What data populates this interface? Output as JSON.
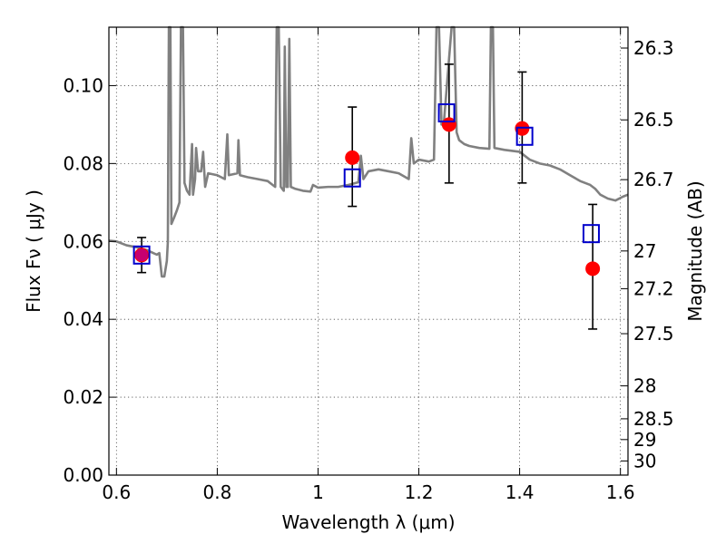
{
  "chart_data": {
    "type": "scatter",
    "xlabel": "Wavelength  λ (μm)",
    "ylabel": "Flux  Fν  ( μJy )",
    "y2label": "Magnitude (AB)",
    "xlim": [
      0.585,
      1.615
    ],
    "ylim": [
      0.0,
      0.115
    ],
    "grid": true,
    "x_ticks": [
      0.6,
      0.8,
      1.0,
      1.2,
      1.4,
      1.6
    ],
    "x_tick_labels": [
      "0.6",
      "0.8",
      "1",
      "1.2",
      "1.4",
      "1.6"
    ],
    "y_ticks": [
      0.0,
      0.02,
      0.04,
      0.06,
      0.08,
      0.1
    ],
    "y_tick_labels": [
      "0.00",
      "0.02",
      "0.04",
      "0.06",
      "0.08",
      "0.10"
    ],
    "y2_ticks": [
      {
        "mag": 26.3,
        "label": "26.3"
      },
      {
        "mag": 26.5,
        "label": "26.5"
      },
      {
        "mag": 26.7,
        "label": "26.7"
      },
      {
        "mag": 27.0,
        "label": "27"
      },
      {
        "mag": 27.2,
        "label": "27.2"
      },
      {
        "mag": 27.5,
        "label": "27.5"
      },
      {
        "mag": 28.0,
        "label": "28"
      },
      {
        "mag": 28.5,
        "label": "28.5"
      },
      {
        "mag": 29.0,
        "label": "29"
      },
      {
        "mag": 30.0,
        "label": "30"
      }
    ],
    "series": [
      {
        "kind": "line",
        "color": "#808080",
        "points": [
          [
            0.585,
            0.0602
          ],
          [
            0.6,
            0.06
          ],
          [
            0.62,
            0.059
          ],
          [
            0.64,
            0.0585
          ],
          [
            0.66,
            0.0578
          ],
          [
            0.67,
            0.0572
          ],
          [
            0.68,
            0.0566
          ],
          [
            0.685,
            0.057
          ],
          [
            0.69,
            0.051
          ],
          [
            0.695,
            0.051
          ],
          [
            0.7,
            0.055
          ],
          [
            0.702,
            0.06
          ],
          [
            0.704,
            0.115
          ],
          [
            0.707,
            0.115
          ],
          [
            0.709,
            0.0645
          ],
          [
            0.714,
            0.066
          ],
          [
            0.72,
            0.068
          ],
          [
            0.725,
            0.07
          ],
          [
            0.728,
            0.115
          ],
          [
            0.732,
            0.115
          ],
          [
            0.735,
            0.075
          ],
          [
            0.74,
            0.073
          ],
          [
            0.745,
            0.072
          ],
          [
            0.75,
            0.085
          ],
          [
            0.752,
            0.072
          ],
          [
            0.756,
            0.076
          ],
          [
            0.758,
            0.084
          ],
          [
            0.762,
            0.078
          ],
          [
            0.768,
            0.078
          ],
          [
            0.772,
            0.083
          ],
          [
            0.776,
            0.074
          ],
          [
            0.782,
            0.0775
          ],
          [
            0.8,
            0.077
          ],
          [
            0.815,
            0.076
          ],
          [
            0.82,
            0.0875
          ],
          [
            0.823,
            0.077
          ],
          [
            0.84,
            0.0775
          ],
          [
            0.842,
            0.086
          ],
          [
            0.845,
            0.077
          ],
          [
            0.86,
            0.0765
          ],
          [
            0.88,
            0.076
          ],
          [
            0.9,
            0.0755
          ],
          [
            0.91,
            0.0745
          ],
          [
            0.915,
            0.074
          ],
          [
            0.918,
            0.115
          ],
          [
            0.922,
            0.115
          ],
          [
            0.926,
            0.074
          ],
          [
            0.932,
            0.073
          ],
          [
            0.934,
            0.11
          ],
          [
            0.937,
            0.074
          ],
          [
            0.94,
            0.074
          ],
          [
            0.943,
            0.112
          ],
          [
            0.946,
            0.074
          ],
          [
            0.955,
            0.0735
          ],
          [
            0.97,
            0.073
          ],
          [
            0.985,
            0.0728
          ],
          [
            0.99,
            0.0745
          ],
          [
            1.0,
            0.0738
          ],
          [
            1.02,
            0.074
          ],
          [
            1.04,
            0.074
          ],
          [
            1.06,
            0.0745
          ],
          [
            1.08,
            0.0752
          ],
          [
            1.085,
            0.082
          ],
          [
            1.09,
            0.076
          ],
          [
            1.1,
            0.078
          ],
          [
            1.12,
            0.0785
          ],
          [
            1.14,
            0.078
          ],
          [
            1.16,
            0.0775
          ],
          [
            1.18,
            0.076
          ],
          [
            1.185,
            0.0865
          ],
          [
            1.19,
            0.08
          ],
          [
            1.2,
            0.081
          ],
          [
            1.22,
            0.0805
          ],
          [
            1.23,
            0.081
          ],
          [
            1.235,
            0.115
          ],
          [
            1.24,
            0.115
          ],
          [
            1.245,
            0.09
          ],
          [
            1.25,
            0.091
          ],
          [
            1.265,
            0.115
          ],
          [
            1.27,
            0.115
          ],
          [
            1.275,
            0.088
          ],
          [
            1.28,
            0.086
          ],
          [
            1.29,
            0.085
          ],
          [
            1.3,
            0.0845
          ],
          [
            1.32,
            0.084
          ],
          [
            1.34,
            0.0838
          ],
          [
            1.343,
            0.115
          ],
          [
            1.347,
            0.115
          ],
          [
            1.35,
            0.084
          ],
          [
            1.37,
            0.0835
          ],
          [
            1.4,
            0.083
          ],
          [
            1.42,
            0.081
          ],
          [
            1.44,
            0.08
          ],
          [
            1.46,
            0.0795
          ],
          [
            1.48,
            0.0785
          ],
          [
            1.5,
            0.077
          ],
          [
            1.52,
            0.0755
          ],
          [
            1.54,
            0.0745
          ],
          [
            1.55,
            0.0735
          ],
          [
            1.56,
            0.072
          ],
          [
            1.575,
            0.071
          ],
          [
            1.59,
            0.0705
          ],
          [
            1.605,
            0.0715
          ],
          [
            1.615,
            0.072
          ]
        ]
      },
      {
        "kind": "errorbar",
        "color": "#000000",
        "points": [
          {
            "x": 0.65,
            "y": 0.0565,
            "lo": 0.052,
            "hi": 0.061
          },
          {
            "x": 1.068,
            "y": 0.0815,
            "lo": 0.069,
            "hi": 0.0945
          },
          {
            "x": 1.26,
            "y": 0.09,
            "lo": 0.075,
            "hi": 0.1055
          },
          {
            "x": 1.405,
            "y": 0.089,
            "lo": 0.075,
            "hi": 0.1035
          },
          {
            "x": 1.545,
            "y": 0.053,
            "lo": 0.0375,
            "hi": 0.0695
          }
        ]
      },
      {
        "kind": "markers",
        "marker": "circle",
        "color": "#ff0000",
        "points": [
          [
            0.65,
            0.0565
          ],
          [
            1.068,
            0.0815
          ],
          [
            1.26,
            0.09
          ],
          [
            1.405,
            0.089
          ],
          [
            1.545,
            0.053
          ]
        ]
      },
      {
        "kind": "markers",
        "marker": "square-open",
        "color": "#0000cc",
        "points": [
          [
            0.65,
            0.0565
          ],
          [
            1.068,
            0.0763
          ],
          [
            1.255,
            0.093
          ],
          [
            1.41,
            0.087
          ],
          [
            1.542,
            0.062
          ]
        ]
      }
    ]
  }
}
